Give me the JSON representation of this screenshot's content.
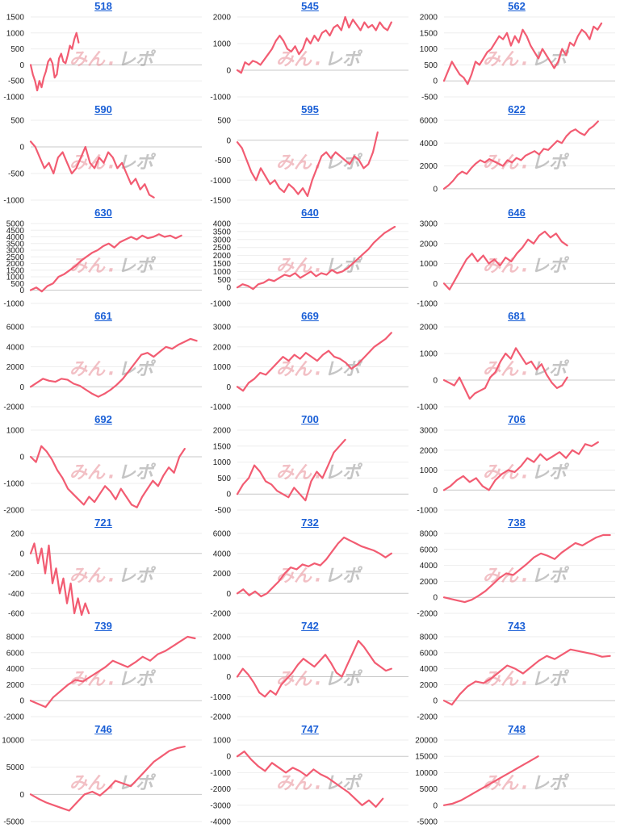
{
  "watermark": {
    "red": "みん",
    "dot": ".",
    "gray": "レポ",
    "red_color": "#e88e97",
    "gray_color": "#8c8c8c"
  },
  "line_color": "#f25c72",
  "title_color": "#1a5fd6",
  "chart_data": [
    {
      "type": "line",
      "title": "518",
      "ylim": [
        -1000,
        1500
      ],
      "yticks": [
        -1000,
        -500,
        0,
        500,
        1000,
        1500
      ],
      "tick_labels": [
        "-1000",
        "-500",
        "0",
        "500",
        "1000",
        "1500"
      ],
      "end_x": 0.28,
      "y": [
        0,
        -300,
        -500,
        -800,
        -500,
        -700,
        -400,
        -200,
        100,
        200,
        50,
        -400,
        -300,
        200,
        350,
        100,
        50,
        300,
        600,
        500,
        800,
        1000,
        700
      ]
    },
    {
      "type": "line",
      "title": "545",
      "ylim": [
        -1000,
        2000
      ],
      "yticks": [
        -1000,
        0,
        1000,
        2000
      ],
      "tick_labels": [
        "-1000",
        "0",
        "1000",
        "2000"
      ],
      "end_x": 0.9,
      "y": [
        0,
        -100,
        300,
        200,
        350,
        300,
        200,
        400,
        600,
        800,
        1100,
        1300,
        1100,
        800,
        700,
        900,
        600,
        800,
        1200,
        1000,
        1300,
        1100,
        1400,
        1500,
        1300,
        1600,
        1700,
        1500,
        2000,
        1600,
        1900,
        1700,
        1500,
        1800,
        1600,
        1700,
        1500,
        1800,
        1600,
        1500,
        1800
      ]
    },
    {
      "type": "line",
      "title": "562",
      "ylim": [
        -500,
        2000
      ],
      "yticks": [
        -500,
        0,
        500,
        1000,
        1500,
        2000
      ],
      "tick_labels": [
        "-500",
        "0",
        "500",
        "1000",
        "1500",
        "2000"
      ],
      "end_x": 0.92,
      "y": [
        0,
        300,
        600,
        400,
        200,
        100,
        -100,
        200,
        600,
        500,
        700,
        900,
        1000,
        1200,
        1400,
        1300,
        1500,
        1100,
        1400,
        1200,
        1600,
        1400,
        1100,
        900,
        700,
        1000,
        800,
        600,
        400,
        600,
        1000,
        800,
        1200,
        1100,
        1400,
        1600,
        1500,
        1300,
        1700,
        1600,
        1800
      ]
    },
    {
      "type": "line",
      "title": "590",
      "ylim": [
        -1000,
        500
      ],
      "yticks": [
        -1000,
        -500,
        0,
        500
      ],
      "tick_labels": [
        "-1000",
        "-500",
        "0",
        "500"
      ],
      "end_x": 0.72,
      "y": [
        100,
        0,
        -200,
        -400,
        -300,
        -500,
        -200,
        -100,
        -300,
        -500,
        -400,
        -200,
        0,
        -300,
        -400,
        -200,
        -300,
        -100,
        -200,
        -400,
        -300,
        -500,
        -700,
        -600,
        -800,
        -700,
        -900,
        -950
      ]
    },
    {
      "type": "line",
      "title": "595",
      "ylim": [
        -1500,
        500
      ],
      "yticks": [
        -1500,
        -1000,
        -500,
        0,
        500
      ],
      "tick_labels": [
        "-1500",
        "-1000",
        "-500",
        "0",
        "500"
      ],
      "end_x": 0.82,
      "y": [
        -50,
        -200,
        -500,
        -800,
        -1000,
        -700,
        -900,
        -1100,
        -1000,
        -1200,
        -1300,
        -1100,
        -1200,
        -1350,
        -1200,
        -1400,
        -1000,
        -700,
        -400,
        -300,
        -450,
        -300,
        -400,
        -500,
        -600,
        -400,
        -500,
        -700,
        -600,
        -300,
        200
      ]
    },
    {
      "type": "line",
      "title": "622",
      "ylim": [
        -1000,
        6000
      ],
      "yticks": [
        0,
        2000,
        4000,
        6000
      ],
      "tick_labels": [
        "0",
        "2000",
        "4000",
        "6000"
      ],
      "end_x": 0.9,
      "y": [
        0,
        300,
        700,
        1200,
        1500,
        1300,
        1800,
        2200,
        2500,
        2300,
        2600,
        2400,
        2200,
        2000,
        2500,
        2300,
        2700,
        2500,
        2900,
        3100,
        3300,
        3000,
        3500,
        3400,
        3800,
        4200,
        4000,
        4600,
        5000,
        5200,
        4900,
        4700,
        5200,
        5500,
        5900
      ]
    },
    {
      "type": "line",
      "title": "630",
      "ylim": [
        -1000,
        5000
      ],
      "yticks": [
        -1000,
        0,
        500,
        1000,
        1500,
        2000,
        2500,
        3000,
        3500,
        4000,
        4500,
        5000
      ],
      "tick_labels": [
        "-1000",
        "0",
        "500",
        "1000",
        "1500",
        "2000",
        "2500",
        "3000",
        "3500",
        "4000",
        "4500",
        "5000"
      ],
      "end_x": 0.88,
      "y": [
        0,
        200,
        -100,
        300,
        500,
        1000,
        1200,
        1500,
        1800,
        2200,
        2500,
        2800,
        3000,
        3300,
        3500,
        3200,
        3600,
        3800,
        4000,
        3800,
        4100,
        3900,
        4000,
        4200,
        4000,
        4100,
        3900,
        4100
      ]
    },
    {
      "type": "line",
      "title": "640",
      "ylim": [
        -1000,
        4000
      ],
      "yticks": [
        -1000,
        0,
        500,
        1000,
        1500,
        2000,
        2500,
        3000,
        3500,
        4000
      ],
      "tick_labels": [
        "-1000",
        "0",
        "500",
        "1000",
        "1500",
        "2000",
        "2500",
        "3000",
        "3500",
        "4000"
      ],
      "end_x": 0.92,
      "y": [
        0,
        200,
        100,
        -100,
        200,
        300,
        500,
        400,
        600,
        800,
        700,
        900,
        600,
        800,
        1000,
        700,
        900,
        800,
        1100,
        900,
        1000,
        1200,
        1500,
        1800,
        2100,
        2400,
        2800,
        3100,
        3400,
        3600,
        3800
      ]
    },
    {
      "type": "line",
      "title": "646",
      "ylim": [
        -1000,
        3000
      ],
      "yticks": [
        -1000,
        0,
        1000,
        2000,
        3000
      ],
      "tick_labels": [
        "-1000",
        "0",
        "1000",
        "2000",
        "3000"
      ],
      "end_x": 0.72,
      "y": [
        0,
        -300,
        200,
        700,
        1200,
        1500,
        1100,
        1400,
        1000,
        1200,
        900,
        1300,
        1100,
        1500,
        1800,
        2200,
        2000,
        2400,
        2600,
        2300,
        2500,
        2100,
        1900
      ]
    },
    {
      "type": "line",
      "title": "661",
      "ylim": [
        -2000,
        6000
      ],
      "yticks": [
        -2000,
        0,
        2000,
        4000,
        6000
      ],
      "tick_labels": [
        "-2000",
        "0",
        "2000",
        "4000",
        "6000"
      ],
      "end_x": 0.97,
      "y": [
        0,
        400,
        800,
        600,
        500,
        800,
        700,
        300,
        100,
        -300,
        -700,
        -1000,
        -700,
        -300,
        200,
        800,
        1600,
        2400,
        3200,
        3400,
        3000,
        3500,
        4000,
        3800,
        4200,
        4500,
        4800,
        4600
      ]
    },
    {
      "type": "line",
      "title": "669",
      "ylim": [
        -1000,
        3000
      ],
      "yticks": [
        -1000,
        0,
        1000,
        2000,
        3000
      ],
      "tick_labels": [
        "-1000",
        "0",
        "1000",
        "2000",
        "3000"
      ],
      "end_x": 0.9,
      "y": [
        0,
        -200,
        200,
        400,
        700,
        600,
        900,
        1200,
        1500,
        1300,
        1600,
        1400,
        1700,
        1500,
        1300,
        1600,
        1800,
        1500,
        1400,
        1200,
        900,
        1100,
        1400,
        1700,
        2000,
        2200,
        2400,
        2700
      ]
    },
    {
      "type": "line",
      "title": "681",
      "ylim": [
        -1000,
        2000
      ],
      "yticks": [
        -1000,
        0,
        1000,
        2000
      ],
      "tick_labels": [
        "-1000",
        "0",
        "1000",
        "2000"
      ],
      "end_x": 0.72,
      "y": [
        0,
        -100,
        -200,
        100,
        -300,
        -700,
        -500,
        -400,
        -300,
        100,
        300,
        700,
        1000,
        800,
        1200,
        900,
        600,
        700,
        400,
        600,
        200,
        -100,
        -300,
        -200,
        100
      ]
    },
    {
      "type": "line",
      "title": "692",
      "ylim": [
        -2000,
        1000
      ],
      "yticks": [
        -2000,
        -1000,
        0,
        1000
      ],
      "tick_labels": [
        "-2000",
        "-1000",
        "0",
        "1000"
      ],
      "end_x": 0.9,
      "y": [
        0,
        -200,
        400,
        200,
        -100,
        -500,
        -800,
        -1200,
        -1400,
        -1600,
        -1800,
        -1500,
        -1700,
        -1400,
        -1100,
        -1300,
        -1600,
        -1200,
        -1500,
        -1800,
        -1900,
        -1500,
        -1200,
        -900,
        -1100,
        -700,
        -400,
        -600,
        0,
        300
      ]
    },
    {
      "type": "line",
      "title": "700",
      "ylim": [
        -500,
        2000
      ],
      "yticks": [
        -500,
        0,
        500,
        1000,
        1500,
        2000
      ],
      "tick_labels": [
        "-500",
        "0",
        "500",
        "1000",
        "1500",
        "2000"
      ],
      "end_x": 0.63,
      "y": [
        0,
        300,
        500,
        900,
        700,
        400,
        300,
        100,
        0,
        -100,
        200,
        0,
        -200,
        400,
        700,
        500,
        900,
        1300,
        1500,
        1700
      ]
    },
    {
      "type": "line",
      "title": "706",
      "ylim": [
        -1000,
        3000
      ],
      "yticks": [
        -1000,
        0,
        1000,
        2000,
        3000
      ],
      "tick_labels": [
        "-1000",
        "0",
        "1000",
        "2000",
        "3000"
      ],
      "end_x": 0.9,
      "y": [
        0,
        200,
        500,
        700,
        400,
        600,
        200,
        0,
        500,
        800,
        1000,
        900,
        1200,
        1600,
        1400,
        1800,
        1500,
        1700,
        1900,
        1600,
        2000,
        1800,
        2300,
        2200,
        2400
      ]
    },
    {
      "type": "line",
      "title": "721",
      "ylim": [
        -600,
        200
      ],
      "yticks": [
        -600,
        -400,
        -200,
        0,
        200
      ],
      "tick_labels": [
        "-600",
        "-400",
        "-200",
        "0",
        "200"
      ],
      "end_x": 0.34,
      "y": [
        0,
        100,
        -100,
        50,
        -200,
        80,
        -300,
        -150,
        -400,
        -250,
        -500,
        -300,
        -600,
        -450,
        -700,
        -500,
        -600
      ]
    },
    {
      "type": "line",
      "title": "732",
      "ylim": [
        -2000,
        6000
      ],
      "yticks": [
        -2000,
        0,
        2000,
        4000,
        6000
      ],
      "tick_labels": [
        "-2000",
        "0",
        "2000",
        "4000",
        "6000"
      ],
      "end_x": 0.9,
      "y": [
        0,
        400,
        -200,
        200,
        -300,
        0,
        600,
        1200,
        2000,
        2600,
        2400,
        2900,
        2700,
        3000,
        2800,
        3400,
        4200,
        5000,
        5600,
        5300,
        5000,
        4700,
        4500,
        4300,
        4000,
        3600,
        4000
      ]
    },
    {
      "type": "line",
      "title": "738",
      "ylim": [
        -2000,
        8000
      ],
      "yticks": [
        -2000,
        0,
        2000,
        4000,
        6000,
        8000
      ],
      "tick_labels": [
        "-2000",
        "0",
        "2000",
        "4000",
        "6000",
        "8000"
      ],
      "end_x": 0.97,
      "y": [
        0,
        -200,
        -400,
        -600,
        -300,
        200,
        800,
        1600,
        2400,
        3000,
        2800,
        3500,
        4200,
        5000,
        5500,
        5200,
        4800,
        5600,
        6200,
        6800,
        6500,
        7000,
        7500,
        7800,
        7800
      ]
    },
    {
      "type": "line",
      "title": "739",
      "ylim": [
        -2000,
        8000
      ],
      "yticks": [
        -2000,
        0,
        2000,
        4000,
        6000,
        8000
      ],
      "tick_labels": [
        "-2000",
        "0",
        "2000",
        "4000",
        "6000",
        "8000"
      ],
      "end_x": 0.96,
      "y": [
        0,
        -400,
        -800,
        400,
        1200,
        2000,
        2600,
        2400,
        3000,
        3600,
        4200,
        5000,
        4600,
        4200,
        4800,
        5500,
        5000,
        5800,
        6200,
        6800,
        7400,
        8000,
        7800
      ]
    },
    {
      "type": "line",
      "title": "742",
      "ylim": [
        -2000,
        2000
      ],
      "yticks": [
        -2000,
        -1000,
        0,
        1000,
        2000
      ],
      "tick_labels": [
        "-2000",
        "-1000",
        "0",
        "1000",
        "2000"
      ],
      "end_x": 0.9,
      "y": [
        0,
        400,
        100,
        -300,
        -800,
        -1000,
        -700,
        -900,
        -400,
        -100,
        200,
        600,
        900,
        700,
        500,
        800,
        1100,
        700,
        200,
        0,
        600,
        1200,
        1800,
        1500,
        1100,
        700,
        500,
        300,
        400
      ]
    },
    {
      "type": "line",
      "title": "743",
      "ylim": [
        -2000,
        8000
      ],
      "yticks": [
        -2000,
        0,
        2000,
        4000,
        6000,
        8000
      ],
      "tick_labels": [
        "-2000",
        "0",
        "2000",
        "4000",
        "6000",
        "8000"
      ],
      "end_x": 0.97,
      "y": [
        0,
        -500,
        800,
        1800,
        2400,
        2200,
        2800,
        3600,
        4400,
        4000,
        3400,
        4200,
        5000,
        5600,
        5200,
        5800,
        6400,
        6200,
        6000,
        5800,
        5500,
        5600
      ]
    },
    {
      "type": "line",
      "title": "746",
      "ylim": [
        -5000,
        10000
      ],
      "yticks": [
        -5000,
        0,
        5000,
        10000
      ],
      "tick_labels": [
        "-5000",
        "0",
        "5000",
        "10000"
      ],
      "end_x": 0.9,
      "y": [
        0,
        -800,
        -1500,
        -2000,
        -2500,
        -3000,
        -1500,
        0,
        500,
        -200,
        1000,
        2500,
        2000,
        1500,
        3000,
        4500,
        6000,
        7000,
        8000,
        8500,
        8800
      ]
    },
    {
      "type": "line",
      "title": "747",
      "ylim": [
        -4000,
        1000
      ],
      "yticks": [
        -4000,
        -3000,
        -2000,
        -1000,
        0,
        1000
      ],
      "tick_labels": [
        "-4000",
        "-3000",
        "-2000",
        "-1000",
        "0",
        "1000"
      ],
      "end_x": 0.85,
      "y": [
        0,
        300,
        -200,
        -600,
        -900,
        -400,
        -700,
        -1000,
        -700,
        -900,
        -1200,
        -800,
        -1100,
        -1300,
        -1600,
        -1900,
        -2200,
        -2600,
        -3000,
        -2700,
        -3100,
        -2600
      ]
    },
    {
      "type": "line",
      "title": "748",
      "ylim": [
        -5000,
        20000
      ],
      "yticks": [
        -5000,
        0,
        5000,
        10000,
        15000,
        20000
      ],
      "tick_labels": [
        "-5000",
        "0",
        "5000",
        "10000",
        "15000",
        "20000"
      ],
      "end_x": 0.55,
      "y": [
        0,
        500,
        1500,
        3000,
        4500,
        6000,
        7500,
        9000,
        10500,
        12000,
        13500,
        15000
      ]
    }
  ]
}
